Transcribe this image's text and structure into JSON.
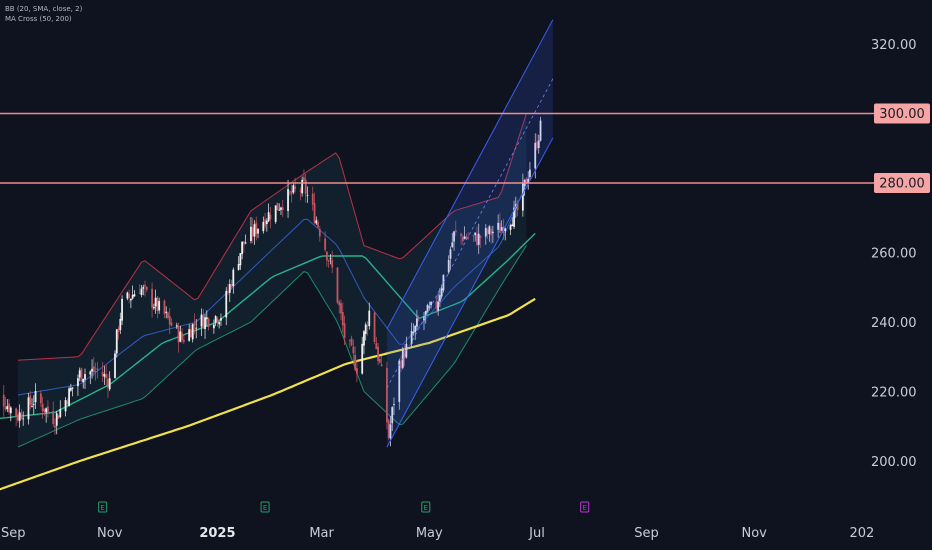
{
  "legend": {
    "bb": "BB (20, SMA, close, 2)",
    "ma": "MA Cross (50, 200)"
  },
  "colors": {
    "background": "#0f1320",
    "axis_text": "#c9ccd6",
    "candle_up": "#f0f0f0",
    "candle_down": "#c7535f",
    "bb_upper": "#b83246",
    "bb_lower": "#1f8a6a",
    "bb_basis": "#2f5cbf",
    "bb_fill": "#1b3a4a",
    "ma50": "#27b28a",
    "ma200": "#f1e14a",
    "channel": "#3a5ff0",
    "hline": "#f28c8c",
    "hline_label_bg": "#f6a4a4",
    "earnings": "#26a269",
    "event": "#c233d6"
  },
  "chart_data": {
    "type": "candlestick",
    "title": "",
    "ylim": [
      190,
      330
    ],
    "y_ticks": [
      "320.00",
      "260.00",
      "240.00",
      "220.00",
      "200.00"
    ],
    "x_ticks": [
      "Sep",
      "Nov",
      "2025",
      "Mar",
      "May",
      "Jul",
      "Sep",
      "Nov",
      "202"
    ],
    "horizontal_lines": [
      {
        "value": 300,
        "label": "300.00"
      },
      {
        "value": 280,
        "label": "280.00"
      }
    ],
    "event_markers": [
      {
        "label": "E",
        "near": "Oct",
        "kind": "earnings"
      },
      {
        "label": "E",
        "near": "Jan",
        "kind": "earnings"
      },
      {
        "label": "E",
        "near": "Apr",
        "kind": "earnings"
      },
      {
        "label": "E",
        "near": "Jul",
        "kind": "upcoming"
      }
    ],
    "close_anchors": [
      {
        "date": "2024-08-26",
        "close": 221
      },
      {
        "date": "2024-09-10",
        "close": 213
      },
      {
        "date": "2024-09-20",
        "close": 218
      },
      {
        "date": "2024-10-01",
        "close": 212
      },
      {
        "date": "2024-10-15",
        "close": 225
      },
      {
        "date": "2024-10-25",
        "close": 226
      },
      {
        "date": "2024-11-01",
        "close": 223
      },
      {
        "date": "2024-11-08",
        "close": 245
      },
      {
        "date": "2024-11-18",
        "close": 250
      },
      {
        "date": "2024-12-02",
        "close": 242
      },
      {
        "date": "2024-12-12",
        "close": 235
      },
      {
        "date": "2024-12-20",
        "close": 240
      },
      {
        "date": "2025-01-03",
        "close": 242
      },
      {
        "date": "2025-01-15",
        "close": 262
      },
      {
        "date": "2025-01-28",
        "close": 270
      },
      {
        "date": "2025-02-10",
        "close": 276
      },
      {
        "date": "2025-02-19",
        "close": 279
      },
      {
        "date": "2025-02-27",
        "close": 268
      },
      {
        "date": "2025-03-07",
        "close": 255
      },
      {
        "date": "2025-03-14",
        "close": 236
      },
      {
        "date": "2025-03-21",
        "close": 227
      },
      {
        "date": "2025-03-28",
        "close": 243
      },
      {
        "date": "2025-04-04",
        "close": 225
      },
      {
        "date": "2025-04-08",
        "close": 207
      },
      {
        "date": "2025-04-14",
        "close": 228
      },
      {
        "date": "2025-04-25",
        "close": 240
      },
      {
        "date": "2025-05-05",
        "close": 245
      },
      {
        "date": "2025-05-15",
        "close": 265
      },
      {
        "date": "2025-05-28",
        "close": 264
      },
      {
        "date": "2025-06-10",
        "close": 267
      },
      {
        "date": "2025-06-20",
        "close": 272
      },
      {
        "date": "2025-06-30",
        "close": 290
      },
      {
        "date": "2025-07-03",
        "close": 296
      }
    ],
    "bollinger": {
      "upper": [
        [
          "2024-09-10",
          229
        ],
        [
          "2024-10-15",
          230
        ],
        [
          "2024-11-20",
          258
        ],
        [
          "2024-12-20",
          246
        ],
        [
          "2025-01-20",
          272
        ],
        [
          "2025-02-20",
          283
        ],
        [
          "2025-03-10",
          289
        ],
        [
          "2025-03-25",
          262
        ],
        [
          "2025-04-15",
          258
        ],
        [
          "2025-05-15",
          272
        ],
        [
          "2025-06-10",
          276
        ],
        [
          "2025-06-25",
          300
        ]
      ],
      "basis": [
        [
          "2024-09-10",
          219
        ],
        [
          "2024-10-15",
          222
        ],
        [
          "2024-11-20",
          236
        ],
        [
          "2024-12-20",
          240
        ],
        [
          "2025-01-20",
          255
        ],
        [
          "2025-02-20",
          270
        ],
        [
          "2025-03-10",
          262
        ],
        [
          "2025-03-25",
          247
        ],
        [
          "2025-04-15",
          233
        ],
        [
          "2025-05-15",
          250
        ],
        [
          "2025-06-10",
          262
        ],
        [
          "2025-06-25",
          280
        ]
      ],
      "lower": [
        [
          "2024-09-10",
          204
        ],
        [
          "2024-10-15",
          212
        ],
        [
          "2024-11-20",
          218
        ],
        [
          "2024-12-20",
          232
        ],
        [
          "2025-01-20",
          240
        ],
        [
          "2025-02-20",
          255
        ],
        [
          "2025-03-10",
          240
        ],
        [
          "2025-03-25",
          220
        ],
        [
          "2025-04-15",
          210
        ],
        [
          "2025-05-15",
          228
        ],
        [
          "2025-06-10",
          250
        ],
        [
          "2025-06-25",
          262
        ]
      ]
    },
    "ma50": [
      [
        "2024-08-26",
        212
      ],
      [
        "2024-10-01",
        214
      ],
      [
        "2024-11-01",
        222
      ],
      [
        "2024-12-01",
        234
      ],
      [
        "2025-01-01",
        240
      ],
      [
        "2025-02-01",
        253
      ],
      [
        "2025-03-01",
        259
      ],
      [
        "2025-03-25",
        259
      ],
      [
        "2025-04-25",
        241
      ],
      [
        "2025-05-20",
        246
      ],
      [
        "2025-06-15",
        258
      ],
      [
        "2025-07-01",
        266
      ]
    ],
    "ma200": [
      [
        "2024-08-26",
        191
      ],
      [
        "2024-10-15",
        200
      ],
      [
        "2024-12-15",
        210
      ],
      [
        "2025-02-01",
        219
      ],
      [
        "2025-03-15",
        228
      ],
      [
        "2025-05-01",
        234
      ],
      [
        "2025-06-15",
        242
      ],
      [
        "2025-07-01",
        247
      ]
    ],
    "regression_channel": {
      "start": "2025-04-07",
      "end": "2025-07-10",
      "start_mid": 221,
      "end_mid": 310,
      "half_width": 17
    }
  }
}
